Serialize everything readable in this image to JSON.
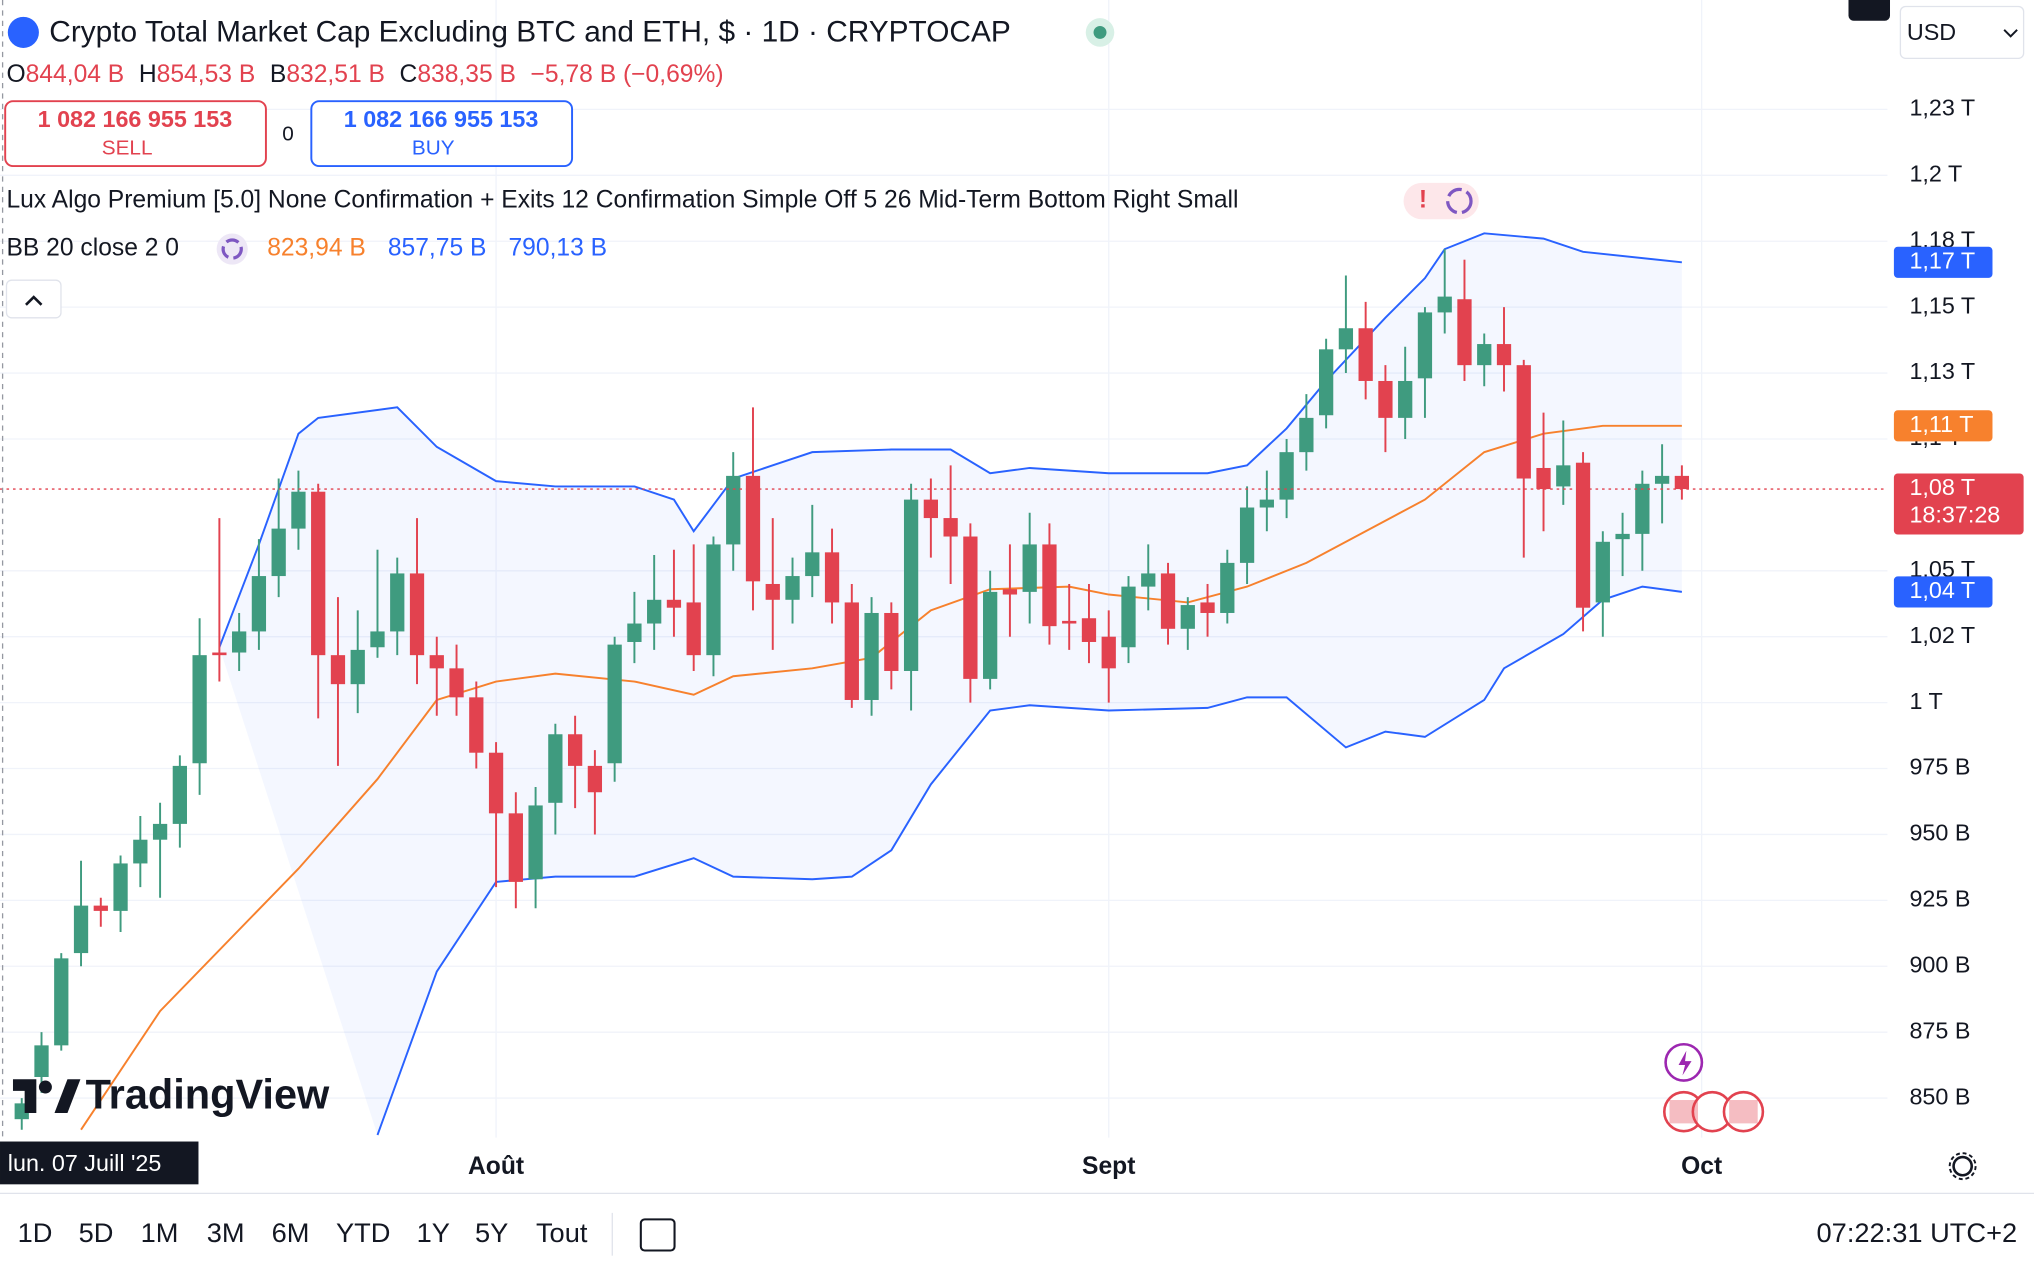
{
  "ui": {
    "title": "Crypto Total Market Cap Excluding BTC and ETH, $ · 1D · CRYPTOCAP",
    "ohlc": {
      "o_label": "O",
      "o": "844,04 B",
      "h_label": "H",
      "h": "854,53 B",
      "l_label": "B",
      "l": "832,51 B",
      "c_label": "C",
      "c": "838,35 B",
      "change": "−5,78 B (−0,69%)"
    },
    "trade": {
      "sell_price": "1 082 166 955 153",
      "sell": "SELL",
      "spread": "0",
      "buy_price": "1 082 166 955 153",
      "buy": "BUY"
    },
    "indicators": {
      "lux": "Lux Algo Premium [5.0] None Confirmation + Exits 12 Confirmation Simple Off 5 26 Mid-Term Bottom Right Small",
      "alert": "!",
      "bb": {
        "label": "BB 20 close 2 0",
        "middle": "823,94 B",
        "upper": "857,75 B",
        "lower": "790,13 B"
      }
    },
    "currency": "USD",
    "crosshair_date": "lun. 07 Juill '25",
    "logo": "TradingView",
    "price_labels": {
      "upper": "1,17 T",
      "middle": "1,11 T",
      "last": "1,08 T",
      "countdown": "18:37:28",
      "lower": "1,04 T"
    },
    "ranges": [
      "1D",
      "5D",
      "1M",
      "3M",
      "6M",
      "YTD",
      "1Y",
      "5Y",
      "Tout"
    ],
    "clock": "07:22:31 UTC+2"
  },
  "chart_data": {
    "type": "candlestick",
    "xlim": [
      -1.1,
      94.4
    ],
    "ylim": [
      835,
      1266.5
    ],
    "grid": true,
    "up_color": "#3f9b7f",
    "down_color": "#e2424f",
    "yticks": [
      {
        "value": 850,
        "label": "850 B"
      },
      {
        "value": 875,
        "label": "875 B"
      },
      {
        "value": 900,
        "label": "900 B"
      },
      {
        "value": 925,
        "label": "925 B"
      },
      {
        "value": 950,
        "label": "950 B"
      },
      {
        "value": 975,
        "label": "975 B"
      },
      {
        "value": 1000,
        "label": "1 T"
      },
      {
        "value": 1025,
        "label": "1,02 T"
      },
      {
        "value": 1050,
        "label": "1,05 T"
      },
      {
        "value": 1100,
        "label": "1,1 T"
      },
      {
        "value": 1125,
        "label": "1,13 T"
      },
      {
        "value": 1150,
        "label": "1,15 T"
      },
      {
        "value": 1175,
        "label": "1,18 T"
      },
      {
        "value": 1200,
        "label": "1,2 T"
      },
      {
        "value": 1225,
        "label": "1,23 T"
      }
    ],
    "xticks": [
      {
        "value": 24,
        "label": "Août"
      },
      {
        "value": 55,
        "label": "Sept"
      },
      {
        "value": 85,
        "label": "Oct"
      }
    ],
    "open": [
      842,
      858,
      870,
      905,
      923,
      921,
      939,
      948,
      954,
      977,
      1019,
      1019,
      1027,
      1048,
      1066,
      1080,
      1018,
      1007,
      1021,
      1027,
      1049,
      1018,
      1013,
      1002,
      981,
      958,
      933,
      962,
      988,
      976,
      977,
      1023,
      1030,
      1039,
      1038,
      1018,
      1060,
      1086,
      1045,
      1039,
      1048,
      1057,
      1038,
      1001,
      1034,
      1012,
      1077,
      1070,
      1063,
      1009,
      1043,
      1042,
      1060,
      1031,
      1032,
      1025,
      1021,
      1044,
      1049,
      1028,
      1038,
      1034,
      1053,
      1074,
      1077,
      1095,
      1109,
      1134,
      1142,
      1122,
      1108,
      1123,
      1148,
      1153,
      1128,
      1136,
      1128,
      1089,
      1082,
      1091,
      1038,
      1062,
      1064,
      1083,
      1086
    ],
    "high": [
      850,
      875,
      905,
      940,
      926,
      942,
      957,
      962,
      980,
      1032,
      1070,
      1034,
      1062,
      1085,
      1088,
      1083,
      1040,
      1035,
      1058,
      1055,
      1070,
      1025,
      1022,
      1008,
      985,
      966,
      968,
      992,
      995,
      982,
      1025,
      1042,
      1056,
      1058,
      1060,
      1063,
      1095,
      1112,
      1070,
      1055,
      1075,
      1066,
      1045,
      1040,
      1038,
      1083,
      1085,
      1090,
      1068,
      1050,
      1060,
      1072,
      1068,
      1045,
      1045,
      1035,
      1048,
      1060,
      1053,
      1040,
      1045,
      1058,
      1082,
      1088,
      1100,
      1117,
      1138,
      1162,
      1152,
      1128,
      1135,
      1150,
      1172,
      1168,
      1140,
      1150,
      1130,
      1110,
      1107,
      1095,
      1065,
      1072,
      1088,
      1098,
      1090
    ],
    "low": [
      838,
      852,
      868,
      900,
      915,
      913,
      930,
      926,
      945,
      965,
      1008,
      1012,
      1020,
      1040,
      1058,
      994,
      976,
      996,
      1017,
      1018,
      1007,
      995,
      995,
      975,
      930,
      922,
      922,
      950,
      960,
      950,
      970,
      1015,
      1020,
      1025,
      1012,
      1010,
      1050,
      1035,
      1020,
      1030,
      1040,
      1030,
      998,
      995,
      1005,
      997,
      1055,
      1045,
      1000,
      1005,
      1025,
      1030,
      1022,
      1020,
      1015,
      1000,
      1015,
      1035,
      1022,
      1020,
      1025,
      1030,
      1045,
      1065,
      1070,
      1088,
      1104,
      1125,
      1115,
      1095,
      1100,
      1108,
      1140,
      1122,
      1120,
      1118,
      1055,
      1065,
      1075,
      1027,
      1025,
      1048,
      1050,
      1068,
      1077
    ],
    "close": [
      848,
      870,
      903,
      923,
      921,
      939,
      948,
      954,
      976,
      1018,
      1018,
      1027,
      1048,
      1066,
      1080,
      1018,
      1007,
      1020,
      1027,
      1049,
      1018,
      1013,
      1002,
      981,
      958,
      932,
      961,
      988,
      976,
      966,
      1022,
      1030,
      1039,
      1036,
      1018,
      1060,
      1086,
      1046,
      1039,
      1048,
      1057,
      1038,
      1001,
      1034,
      1012,
      1077,
      1070,
      1063,
      1009,
      1042,
      1041,
      1060,
      1029,
      1030,
      1023,
      1013,
      1044,
      1049,
      1028,
      1037,
      1034,
      1053,
      1074,
      1077,
      1095,
      1108,
      1134,
      1142,
      1122,
      1108,
      1122,
      1148,
      1154,
      1128,
      1136,
      1128,
      1085,
      1081,
      1090,
      1036,
      1061,
      1064,
      1083,
      1086,
      1081
    ],
    "bands": {
      "upper": {
        "color": "#2962ff",
        "x": [
          10,
          12,
          14,
          15,
          19,
          21,
          24,
          27,
          31,
          33,
          34,
          36,
          38,
          40,
          44,
          47,
          49,
          51,
          55,
          60,
          62,
          64,
          66,
          69,
          71,
          72,
          74,
          77,
          79,
          84
        ],
        "values": [
          1021,
          1060,
          1102,
          1108,
          1112,
          1097,
          1084,
          1082,
          1082,
          1077,
          1065,
          1085,
          1090,
          1095,
          1096,
          1096,
          1087,
          1089,
          1087,
          1087,
          1090,
          1104,
          1122,
          1146,
          1161,
          1172,
          1178,
          1176,
          1171,
          1167
        ]
      },
      "middle": {
        "color": "#f7812d",
        "x": [
          3,
          7,
          14,
          18,
          21,
          24,
          27,
          31,
          34,
          36,
          40,
          43,
          46,
          49,
          53,
          55,
          59,
          62,
          65,
          68,
          71,
          74,
          77,
          80,
          84
        ],
        "values": [
          838,
          883,
          937,
          971,
          1001,
          1008,
          1011,
          1008,
          1003,
          1010,
          1013,
          1017,
          1035,
          1043,
          1044,
          1041,
          1038,
          1044,
          1053,
          1065,
          1077,
          1095,
          1102,
          1105,
          1105
        ]
      },
      "lower": {
        "color": "#2962ff",
        "x": [
          18,
          21,
          24,
          27,
          31,
          34,
          36,
          40,
          42,
          44,
          46,
          49,
          51,
          55,
          60,
          62,
          64,
          67,
          69,
          71,
          74,
          75,
          78,
          80,
          82,
          84
        ],
        "values": [
          836,
          898,
          932,
          934,
          934,
          941,
          934,
          933,
          934,
          944,
          969,
          997,
          999,
          997,
          998,
          1002,
          1002,
          983,
          989,
          987,
          1001,
          1013,
          1026,
          1039,
          1044,
          1042
        ]
      }
    }
  }
}
